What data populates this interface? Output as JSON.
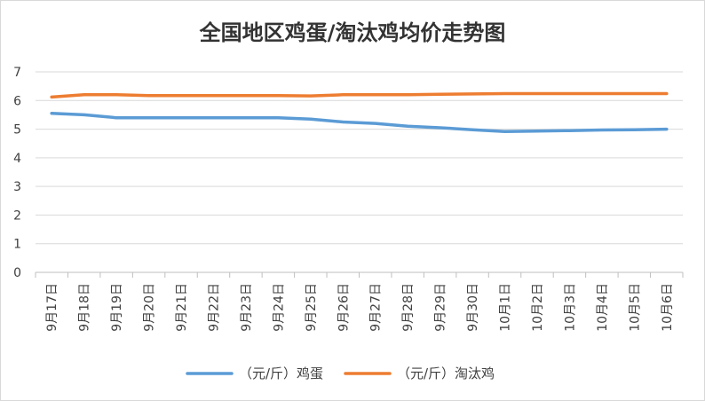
{
  "chart_data": {
    "type": "line",
    "title": "全国地区鸡蛋/淘汰鸡均价走势图",
    "xlabel": "",
    "ylabel": "",
    "ylim": [
      0,
      7
    ],
    "yticks": [
      0,
      1,
      2,
      3,
      4,
      5,
      6,
      7
    ],
    "grid": true,
    "legend_position": "bottom",
    "categories": [
      "9月17日",
      "9月18日",
      "9月19日",
      "9月20日",
      "9月21日",
      "9月22日",
      "9月23日",
      "9月24日",
      "9月25日",
      "9月26日",
      "9月27日",
      "9月28日",
      "9月29日",
      "9月30日",
      "10月1日",
      "10月2日",
      "10月3日",
      "10月4日",
      "10月5日",
      "10月6日"
    ],
    "series": [
      {
        "name": "（元/斤）鸡蛋",
        "color": "#5b9bd5",
        "values": [
          5.55,
          5.5,
          5.4,
          5.4,
          5.4,
          5.4,
          5.4,
          5.4,
          5.35,
          5.25,
          5.2,
          5.1,
          5.05,
          4.98,
          4.92,
          4.93,
          4.95,
          4.97,
          4.98,
          5.0
        ]
      },
      {
        "name": "（元/斤）淘汰鸡",
        "color": "#ed7d31",
        "values": [
          6.12,
          6.2,
          6.2,
          6.17,
          6.17,
          6.17,
          6.17,
          6.17,
          6.16,
          6.2,
          6.2,
          6.2,
          6.22,
          6.23,
          6.24,
          6.24,
          6.24,
          6.24,
          6.24,
          6.24
        ]
      }
    ]
  }
}
